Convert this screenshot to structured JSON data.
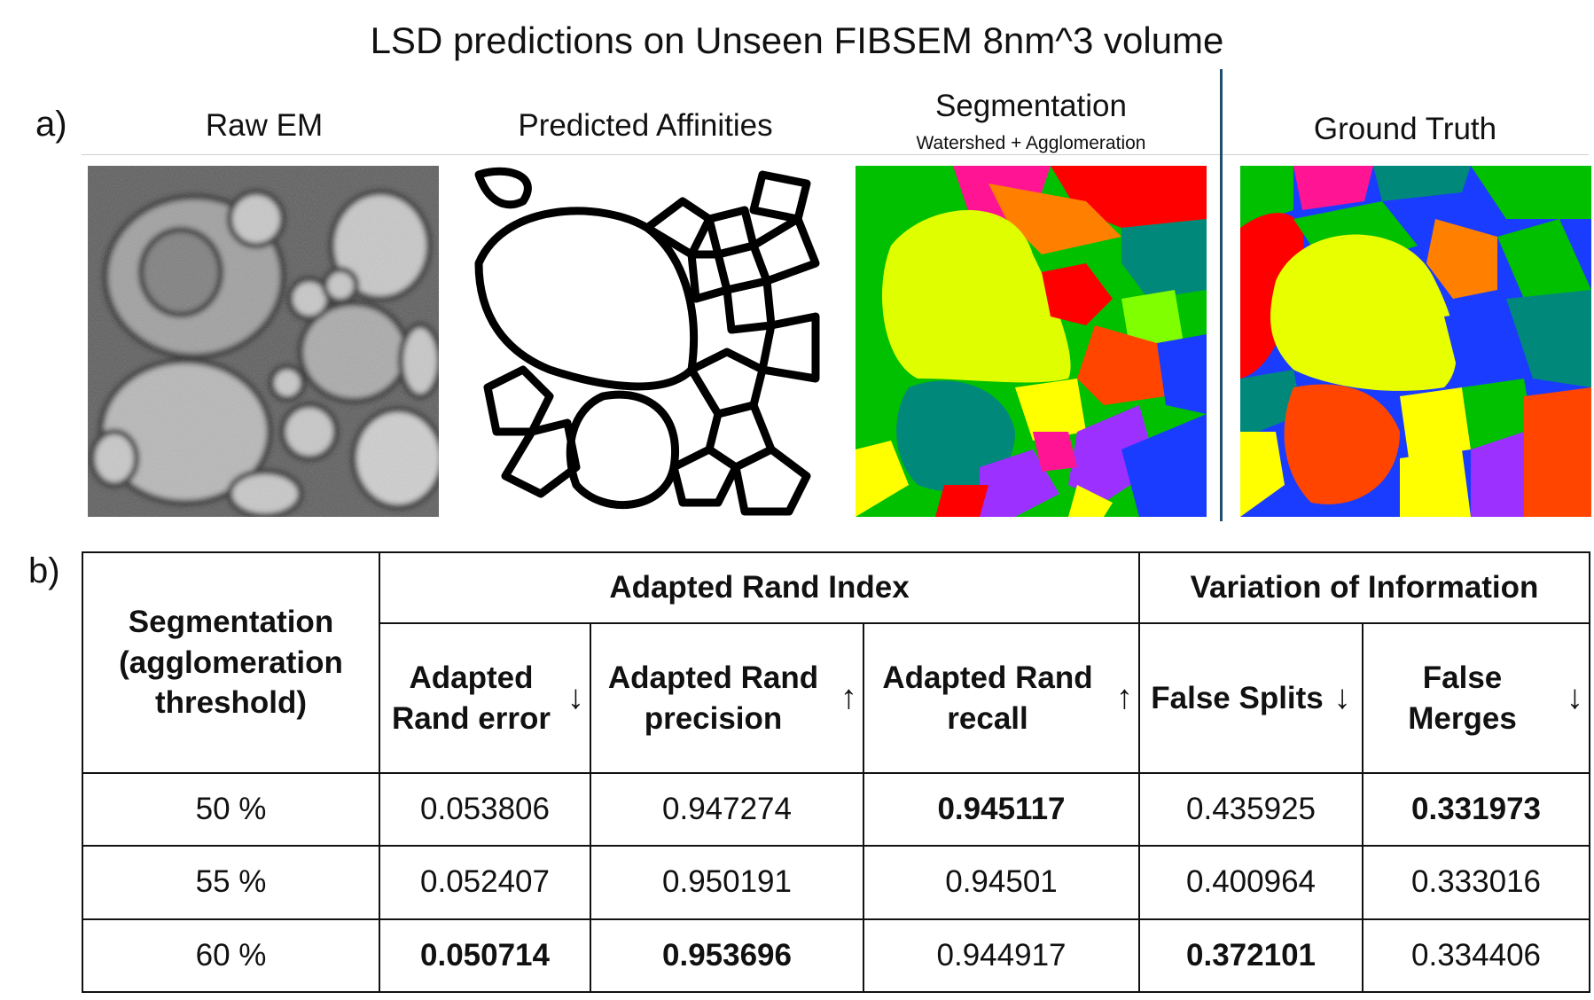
{
  "figure": {
    "title": "LSD predictions on Unseen FIBSEM 8nm^3 volume",
    "panel_a_letter": "a)",
    "panel_b_letter": "b)"
  },
  "panel_a": {
    "columns": [
      {
        "label": "Raw EM",
        "sublabel": ""
      },
      {
        "label": "Predicted Affinities",
        "sublabel": ""
      },
      {
        "label": "Segmentation",
        "sublabel": "Watershed + Agglomeration"
      },
      {
        "label": "Ground Truth",
        "sublabel": ""
      }
    ]
  },
  "table": {
    "row_header_label": "Segmentation (agglomeration threshold)",
    "group_headers": {
      "rand": "Adapted Rand Index",
      "voi": "Variation of Information"
    },
    "columns": [
      {
        "label": "Adapted Rand error",
        "arrow": "↓"
      },
      {
        "label": "Adapted Rand precision",
        "arrow": "↑"
      },
      {
        "label": "Adapted Rand recall",
        "arrow": "↑"
      },
      {
        "label": "False Splits",
        "arrow": "↓"
      },
      {
        "label": "False Merges",
        "arrow": "↓"
      }
    ],
    "rows": [
      {
        "threshold": "50 %",
        "values": [
          "0.053806",
          "0.947274",
          "0.945117",
          "0.435925",
          "0.331973"
        ]
      },
      {
        "threshold": "55 %",
        "values": [
          "0.052407",
          "0.950191",
          "0.94501",
          "0.400964",
          "0.333016"
        ]
      },
      {
        "threshold": "60 %",
        "values": [
          "0.050714",
          "0.953696",
          "0.944917",
          "0.372101",
          "0.334406"
        ]
      }
    ]
  },
  "colors": {
    "divider": "#1f4e6e",
    "segment_palette": [
      "#ffff00",
      "#ff0000",
      "#00c000",
      "#1a3cff",
      "#ff7f00",
      "#00897b",
      "#9b30ff",
      "#ff1493",
      "#7fff00",
      "#ff4500"
    ]
  }
}
